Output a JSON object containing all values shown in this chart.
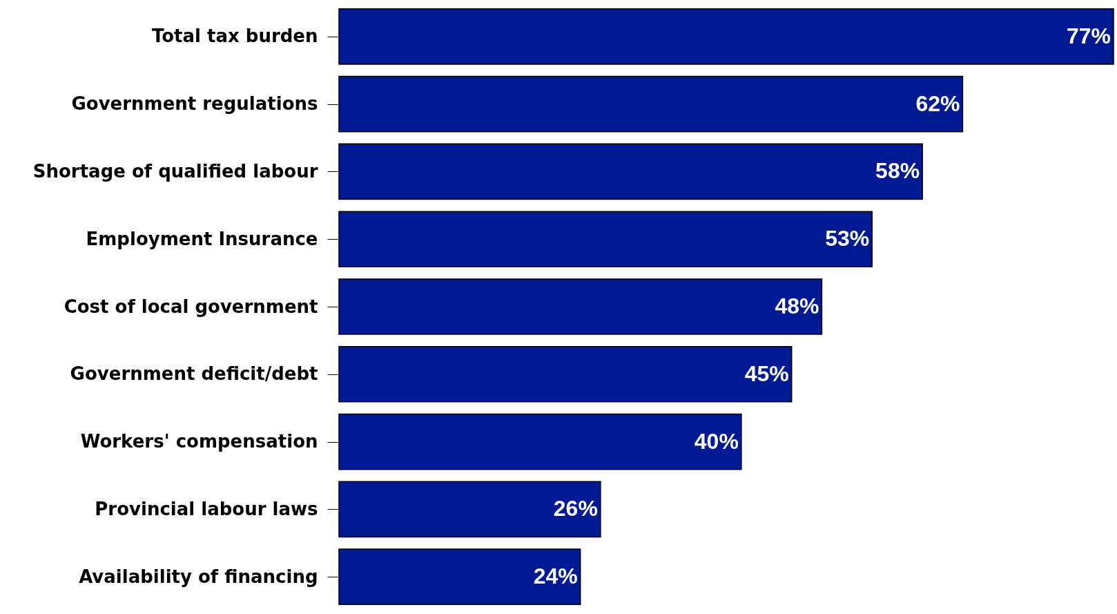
{
  "chart_data": {
    "type": "bar",
    "orientation": "horizontal",
    "categories": [
      "Total tax burden",
      "Government regulations",
      "Shortage of qualified labour",
      "Employment Insurance",
      "Cost of local government",
      "Government deficit/debt",
      "Workers' compensation",
      "Provincial labour laws",
      "Availability of financing"
    ],
    "values": [
      77,
      62,
      58,
      53,
      48,
      45,
      40,
      26,
      24
    ],
    "value_labels": [
      "77%",
      "62%",
      "58%",
      "53%",
      "48%",
      "45%",
      "40%",
      "26%",
      "24%"
    ],
    "color": "#001a94",
    "tick_labels": "y"
  }
}
